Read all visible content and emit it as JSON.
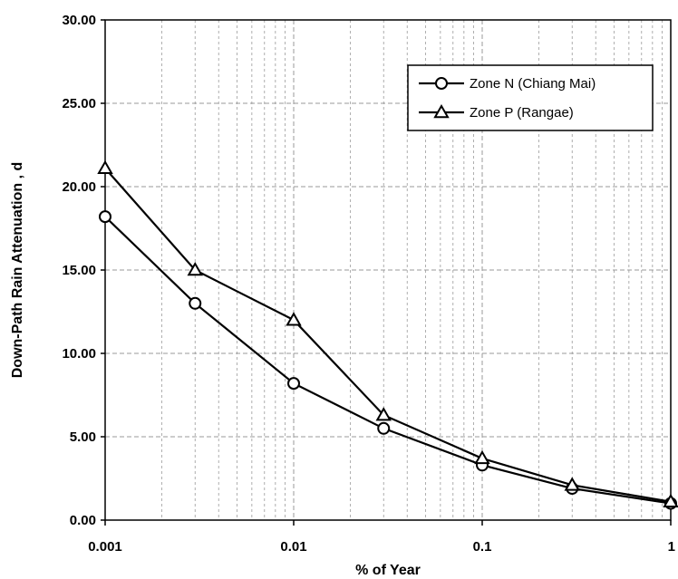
{
  "chart_data": {
    "type": "line",
    "title": "",
    "xlabel": "% of Year",
    "ylabel": "Down-Path Rain Attenuation , d",
    "x_scale": "log",
    "xlim": [
      0.001,
      1
    ],
    "ylim": [
      0,
      30
    ],
    "x_ticks": [
      0.001,
      0.01,
      0.1,
      1
    ],
    "x_tick_labels": [
      "0.001",
      "0.01",
      "0.1",
      "1"
    ],
    "y_ticks": [
      0,
      5,
      10,
      15,
      20,
      25,
      30
    ],
    "y_tick_labels": [
      "0.00",
      "5.00",
      "10.00",
      "15.00",
      "20.00",
      "25.00",
      "30.00"
    ],
    "grid": true,
    "legend_position": "top-right",
    "x": [
      0.001,
      0.003,
      0.01,
      0.03,
      0.1,
      0.3,
      1
    ],
    "series": [
      {
        "name": "Zone N (Chiang Mai)",
        "marker": "circle",
        "values": [
          18.2,
          13.0,
          8.2,
          5.5,
          3.3,
          1.9,
          1.0
        ]
      },
      {
        "name": "Zone P (Rangae)",
        "marker": "triangle",
        "values": [
          21.1,
          15.0,
          12.0,
          6.3,
          3.7,
          2.1,
          1.1
        ]
      }
    ],
    "colors": {
      "line": "#000000",
      "marker_fill": "#ffffff",
      "grid": "#9a9a9a"
    }
  }
}
